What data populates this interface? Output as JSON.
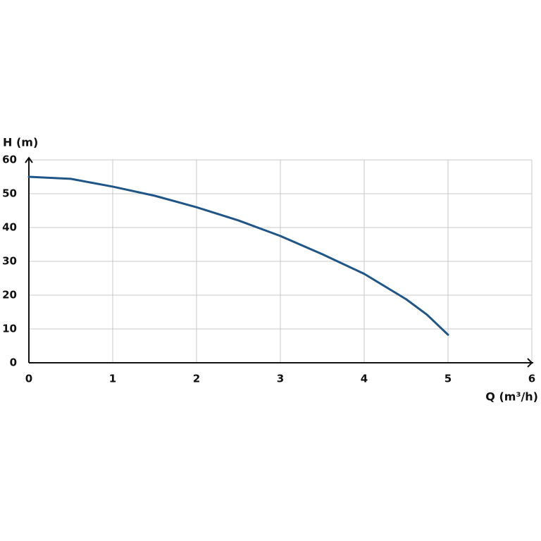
{
  "chart_data": {
    "type": "line",
    "y_label": "H (m)",
    "x_label": "Q (m³/h)",
    "x": [
      0,
      0.5,
      1,
      1.5,
      2,
      2.5,
      3,
      3.5,
      4,
      4.5,
      4.75,
      5
    ],
    "series": [
      {
        "color": "#1f5587",
        "values": [
          55,
          54.4,
          52.1,
          49.4,
          46,
          42.1,
          37.5,
          32.1,
          26.3,
          18.8,
          14.2,
          8.3
        ]
      }
    ],
    "xlim": [
      0,
      6
    ],
    "xticks": [
      0,
      1,
      2,
      3,
      4,
      5,
      6
    ],
    "ylim": [
      0,
      60
    ],
    "yticks": [
      0,
      10,
      20,
      30,
      40,
      50,
      60
    ],
    "grid": true
  }
}
